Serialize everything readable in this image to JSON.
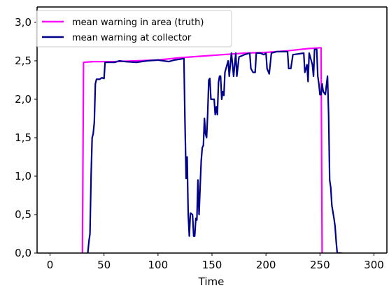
{
  "chart_data": {
    "type": "line",
    "title": "",
    "xlabel": "Time",
    "ylabel": "",
    "xlim": [
      -12,
      312
    ],
    "ylim": [
      0.0,
      3.2
    ],
    "xticks": [
      0,
      50,
      100,
      150,
      200,
      250,
      300
    ],
    "xtick_labels": [
      "0",
      "50",
      "100",
      "150",
      "200",
      "250",
      "300"
    ],
    "yticks": [
      0.0,
      0.5,
      1.0,
      1.5,
      2.0,
      2.5,
      3.0
    ],
    "ytick_labels": [
      "0,0",
      "0,5",
      "1,0",
      "1,5",
      "2,0",
      "2,5",
      "3,0"
    ],
    "grid": false,
    "legend_position": "upper-left",
    "series": [
      {
        "name": "mean warning in area (truth)",
        "color": "#ff00ff",
        "points": [
          [
            30,
            0.0
          ],
          [
            31,
            2.48
          ],
          [
            40,
            2.49
          ],
          [
            60,
            2.49
          ],
          [
            80,
            2.5
          ],
          [
            100,
            2.51
          ],
          [
            120,
            2.54
          ],
          [
            140,
            2.56
          ],
          [
            160,
            2.58
          ],
          [
            180,
            2.6
          ],
          [
            200,
            2.61
          ],
          [
            220,
            2.63
          ],
          [
            240,
            2.66
          ],
          [
            251,
            2.67
          ],
          [
            252,
            0.0
          ]
        ]
      },
      {
        "name": "mean warning at collector",
        "color": "#00008b",
        "points": [
          [
            35,
            0.0
          ],
          [
            36,
            0.15
          ],
          [
            37,
            0.25
          ],
          [
            38,
            1.0
          ],
          [
            39,
            1.5
          ],
          [
            40,
            1.55
          ],
          [
            41,
            1.7
          ],
          [
            42,
            2.2
          ],
          [
            43,
            2.26
          ],
          [
            46,
            2.26
          ],
          [
            48,
            2.28
          ],
          [
            50,
            2.27
          ],
          [
            51,
            2.48
          ],
          [
            52,
            2.48
          ],
          [
            60,
            2.48
          ],
          [
            64,
            2.5
          ],
          [
            70,
            2.49
          ],
          [
            80,
            2.48
          ],
          [
            90,
            2.5
          ],
          [
            100,
            2.51
          ],
          [
            110,
            2.49
          ],
          [
            115,
            2.51
          ],
          [
            120,
            2.52
          ],
          [
            124,
            2.53
          ],
          [
            125,
            1.7
          ],
          [
            126,
            0.97
          ],
          [
            127,
            1.25
          ],
          [
            128,
            0.5
          ],
          [
            129,
            0.22
          ],
          [
            130,
            0.52
          ],
          [
            132,
            0.5
          ],
          [
            133,
            0.22
          ],
          [
            134,
            0.22
          ],
          [
            135,
            0.45
          ],
          [
            136,
            0.43
          ],
          [
            137,
            0.95
          ],
          [
            138,
            0.5
          ],
          [
            139,
            0.85
          ],
          [
            140,
            1.2
          ],
          [
            141,
            1.37
          ],
          [
            142,
            1.4
          ],
          [
            143,
            1.75
          ],
          [
            144,
            1.55
          ],
          [
            145,
            1.5
          ],
          [
            146,
            1.8
          ],
          [
            147,
            2.25
          ],
          [
            148,
            2.27
          ],
          [
            149,
            2.0
          ],
          [
            151,
            2.0
          ],
          [
            152,
            2.0
          ],
          [
            153,
            1.8
          ],
          [
            154,
            1.9
          ],
          [
            155,
            1.8
          ],
          [
            156,
            2.22
          ],
          [
            157,
            2.3
          ],
          [
            158,
            2.3
          ],
          [
            159,
            2.0
          ],
          [
            160,
            2.1
          ],
          [
            161,
            2.05
          ],
          [
            162,
            2.35
          ],
          [
            165,
            2.5
          ],
          [
            166,
            2.3
          ],
          [
            167,
            2.45
          ],
          [
            168,
            2.6
          ],
          [
            170,
            2.3
          ],
          [
            172,
            2.6
          ],
          [
            173,
            2.3
          ],
          [
            175,
            2.55
          ],
          [
            180,
            2.58
          ],
          [
            185,
            2.6
          ],
          [
            186,
            2.4
          ],
          [
            188,
            2.35
          ],
          [
            190,
            2.35
          ],
          [
            191,
            2.6
          ],
          [
            195,
            2.6
          ],
          [
            198,
            2.58
          ],
          [
            200,
            2.6
          ],
          [
            201,
            2.4
          ],
          [
            203,
            2.33
          ],
          [
            205,
            2.6
          ],
          [
            210,
            2.62
          ],
          [
            220,
            2.62
          ],
          [
            221,
            2.4
          ],
          [
            223,
            2.4
          ],
          [
            225,
            2.58
          ],
          [
            235,
            2.6
          ],
          [
            236,
            2.35
          ],
          [
            237,
            2.4
          ],
          [
            238,
            2.45
          ],
          [
            239,
            2.23
          ],
          [
            240,
            2.6
          ],
          [
            243,
            2.45
          ],
          [
            244,
            2.3
          ],
          [
            245,
            2.65
          ],
          [
            247,
            2.65
          ],
          [
            248,
            2.3
          ],
          [
            249,
            2.2
          ],
          [
            250,
            2.06
          ],
          [
            251,
            2.06
          ],
          [
            252,
            2.2
          ],
          [
            253,
            2.1
          ],
          [
            255,
            2.06
          ],
          [
            257,
            2.3
          ],
          [
            258,
            1.8
          ],
          [
            259,
            0.95
          ],
          [
            260,
            0.85
          ],
          [
            261,
            0.62
          ],
          [
            263,
            0.45
          ],
          [
            264,
            0.35
          ],
          [
            265,
            0.15
          ],
          [
            266,
            0.0
          ],
          [
            268,
            0.0
          ],
          [
            270,
            0.0
          ]
        ]
      }
    ]
  }
}
